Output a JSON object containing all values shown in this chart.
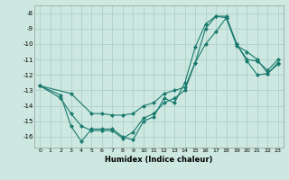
{
  "xlabel": "Humidex (Indice chaleur)",
  "bg_color": "#cce8e0",
  "grid_color": "#b0d0c8",
  "line_color": "#1a7a6e",
  "xlim": [
    -0.5,
    23.5
  ],
  "ylim": [
    -16.7,
    -7.5
  ],
  "yticks": [
    -8,
    -9,
    -10,
    -11,
    -12,
    -13,
    -14,
    -15,
    -16
  ],
  "xticks": [
    0,
    1,
    2,
    3,
    4,
    5,
    6,
    7,
    8,
    9,
    10,
    11,
    12,
    13,
    14,
    15,
    16,
    17,
    18,
    19,
    20,
    21,
    22,
    23
  ],
  "series": [
    {
      "x": [
        0,
        2,
        3,
        4,
        5,
        6,
        7,
        8,
        9,
        10,
        11,
        12,
        13,
        14,
        15,
        16,
        17,
        18,
        19,
        20,
        21,
        22,
        23
      ],
      "y": [
        -12.7,
        -13.3,
        -15.3,
        -16.3,
        -15.5,
        -15.5,
        -15.5,
        -16.0,
        -16.2,
        -15.0,
        -14.7,
        -13.5,
        -13.8,
        -12.5,
        -10.2,
        -8.7,
        -8.2,
        -8.3,
        -10.0,
        -11.1,
        -12.0,
        -11.9,
        -11.3
      ]
    },
    {
      "x": [
        0,
        2,
        3,
        4,
        5,
        6,
        7,
        8,
        9,
        10,
        11,
        12,
        13,
        14,
        15,
        16,
        17,
        18,
        19,
        20,
        21,
        22,
        23
      ],
      "y": [
        -12.7,
        -13.5,
        -14.5,
        -15.3,
        -15.6,
        -15.6,
        -15.6,
        -16.1,
        -15.7,
        -14.8,
        -14.5,
        -13.8,
        -13.5,
        -13.0,
        -11.2,
        -10.0,
        -9.2,
        -8.3,
        -10.1,
        -10.5,
        -11.0,
        -11.9,
        -11.2
      ]
    },
    {
      "x": [
        0,
        3,
        5,
        6,
        7,
        8,
        9,
        10,
        11,
        12,
        13,
        14,
        15,
        16,
        17,
        18,
        19,
        20,
        21,
        22,
        23
      ],
      "y": [
        -12.7,
        -13.2,
        -14.5,
        -14.5,
        -14.6,
        -14.6,
        -14.5,
        -14.0,
        -13.8,
        -13.2,
        -13.0,
        -12.8,
        -11.2,
        -9.0,
        -8.2,
        -8.2,
        -10.0,
        -11.0,
        -11.1,
        -11.7,
        -11.0
      ]
    }
  ]
}
